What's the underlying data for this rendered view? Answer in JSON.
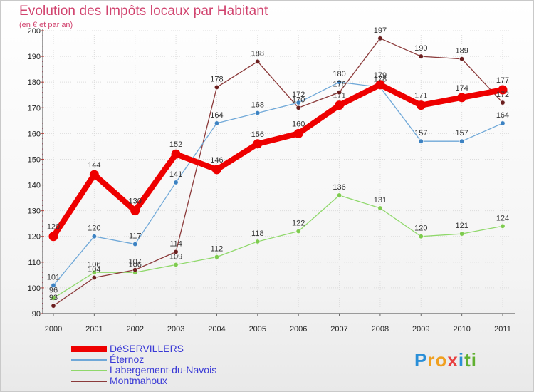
{
  "title": "Evolution des Impôts locaux par Habitant",
  "subtitle": "(en € et par an)",
  "logo": {
    "letters": [
      "P",
      "r",
      "o",
      "x",
      "i",
      "t",
      "i"
    ],
    "colors": [
      "#2a8fd8",
      "#f0a020",
      "#f0a020",
      "#e84040",
      "#2a8fd8",
      "#60b030",
      "#60b030"
    ]
  },
  "chart_data": {
    "type": "line",
    "title": "Evolution des Impôts locaux par Habitant",
    "ylabel": "(en € et par an)",
    "xlabel": "",
    "categories": [
      "2000",
      "2001",
      "2002",
      "2003",
      "2004",
      "2005",
      "2006",
      "2007",
      "2008",
      "2009",
      "2010",
      "2011"
    ],
    "ylim": [
      90,
      200
    ],
    "yticks": [
      "90",
      "100",
      "110",
      "120",
      "130",
      "140",
      "150",
      "160",
      "170",
      "180",
      "190",
      "200"
    ],
    "grid": true,
    "legend_position": "bottom-left",
    "series": [
      {
        "name": "Labergement-du-Navois",
        "color": "#8fd86a",
        "dot": "#7ecb4e",
        "emphasis": false,
        "values": [
          96,
          106,
          106,
          109,
          112,
          118,
          122,
          136,
          131,
          120,
          121,
          124
        ]
      },
      {
        "name": "Montmahoux",
        "color": "#8b3a3a",
        "dot": "#6b1f1f",
        "emphasis": false,
        "values": [
          93,
          104,
          107,
          114,
          178,
          188,
          170,
          176,
          197,
          190,
          189,
          172
        ]
      },
      {
        "name": "Éternoz",
        "color": "#6fa8d8",
        "dot": "#3c82c2",
        "emphasis": false,
        "values": [
          101,
          120,
          117,
          141,
          164,
          168,
          172,
          180,
          178,
          157,
          157,
          164
        ]
      },
      {
        "name": "DéSERVILLERS",
        "color": "#ee0000",
        "dot": "#ee0000",
        "emphasis": true,
        "values": [
          120,
          144,
          130,
          152,
          146,
          156,
          160,
          171,
          179,
          171,
          174,
          177
        ]
      }
    ],
    "legend_order": [
      "DéSERVILLERS",
      "Éternoz",
      "Labergement-du-Navois",
      "Montmahoux"
    ]
  }
}
